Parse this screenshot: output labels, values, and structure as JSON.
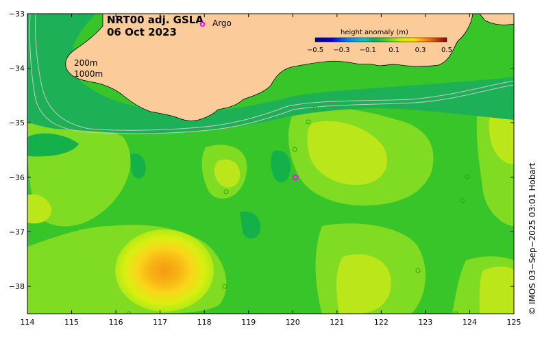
{
  "title": {
    "line1": "NRT00 adj. GSLA",
    "line2": "06 Oct 2023"
  },
  "legend": {
    "argo_symbol": "o",
    "argo_label": "Argo"
  },
  "colorbar": {
    "title": "height anomaly (m)",
    "ticks": [
      "−0.5",
      "−0.3",
      "−0.1",
      "0.1",
      "0.3",
      "0.5"
    ]
  },
  "depth_labels": {
    "line1": "200m",
    "line2": "1000m"
  },
  "axes": {
    "x_ticks": [
      "114",
      "115",
      "116",
      "117",
      "118",
      "119",
      "120",
      "121",
      "122",
      "123",
      "124",
      "125"
    ],
    "y_ticks": [
      "−33",
      "−34",
      "−35",
      "−36",
      "−37",
      "−38"
    ]
  },
  "credit": "© IMOS 03−Sep−2025 03:01 Hobart",
  "colors": {
    "land": "#fbcb9a",
    "ocean_base": "#37c52a",
    "argo": "#e818e8"
  }
}
